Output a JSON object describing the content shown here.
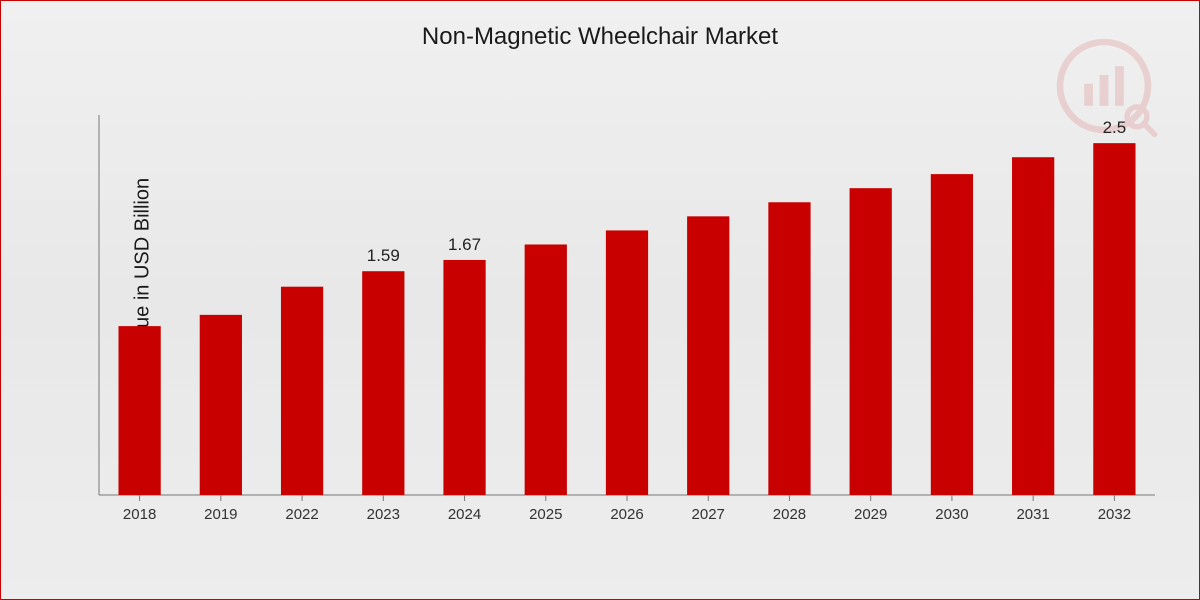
{
  "chart": {
    "type": "bar",
    "title": "Non-Magnetic Wheelchair Market",
    "title_fontsize": 24,
    "ylabel": "Market Value in USD Billion",
    "ylabel_fontsize": 20,
    "categories": [
      "2018",
      "2019",
      "2022",
      "2023",
      "2024",
      "2025",
      "2026",
      "2027",
      "2028",
      "2029",
      "2030",
      "2031",
      "2032"
    ],
    "values": [
      1.2,
      1.28,
      1.48,
      1.59,
      1.67,
      1.78,
      1.88,
      1.98,
      2.08,
      2.18,
      2.28,
      2.4,
      2.5
    ],
    "value_labels": {
      "3": "1.59",
      "4": "1.67",
      "12": "2.5"
    },
    "bar_color": "#c80000",
    "bar_width_ratio": 0.52,
    "background_gradient": [
      "#f0f0f0",
      "#e8e8e8",
      "#ededed"
    ],
    "axis_color": "#777777",
    "tick_label_fontsize": 15,
    "bar_label_fontsize": 17,
    "ymin": 0,
    "ymax": 2.7,
    "tick_len": 6,
    "watermark_color": "#c80000",
    "watermark_opacity": 0.12
  }
}
